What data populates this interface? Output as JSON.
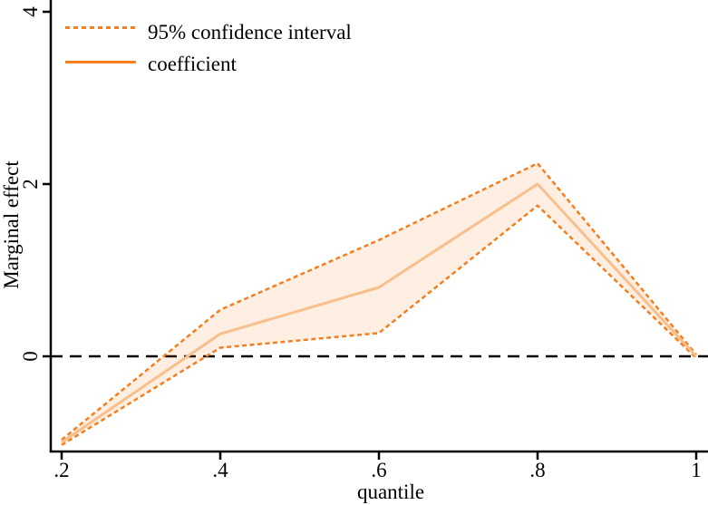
{
  "figure": {
    "ylabel": "Marginal effect",
    "xlabel": "quantile",
    "legend_ci_label": "95% confidence interval",
    "legend_coef_label": "coefficient",
    "colors": {
      "ci_line": "#f57e1e",
      "coefficient_line": "#f8bf8c",
      "band_fill": "rgba(244,129,32,0.13)",
      "zero_line": "#000000",
      "axis": "#000000",
      "text": "#000000"
    }
  },
  "chart_data": {
    "type": "line",
    "title": "",
    "xlabel": "quantile",
    "ylabel": "Marginal effect",
    "x": [
      0.2,
      0.4,
      0.6,
      0.8,
      1.0
    ],
    "series": [
      {
        "name": "coefficient",
        "style": "solid",
        "values": [
          -1.0,
          0.26,
          0.8,
          2.0,
          0.0
        ]
      },
      {
        "name": "95% CI upper",
        "style": "dashed",
        "values": [
          -0.97,
          0.54,
          1.35,
          2.24,
          0.02
        ]
      },
      {
        "name": "95% CI lower",
        "style": "dashed",
        "values": [
          -1.03,
          0.1,
          0.27,
          1.75,
          -0.02
        ]
      }
    ],
    "band": {
      "between": [
        "95% CI upper",
        "95% CI lower"
      ]
    },
    "reference_line_y": 0,
    "x_ticks": [
      {
        "label": ".2",
        "value": 0.2
      },
      {
        "label": ".4",
        "value": 0.4
      },
      {
        "label": ".6",
        "value": 0.6
      },
      {
        "label": ".8",
        "value": 0.8
      },
      {
        "label": "1",
        "value": 1.0
      }
    ],
    "y_ticks": [
      {
        "label": "0",
        "value": 0
      },
      {
        "label": "2",
        "value": 2
      },
      {
        "label": "4",
        "value": 4
      }
    ],
    "xlim": [
      0.186,
      1.015
    ],
    "ylim": [
      -1.11,
      4.14
    ],
    "grid": false,
    "legend_position": "top-left",
    "legend_entries": [
      "95% confidence interval",
      "coefficient"
    ]
  }
}
